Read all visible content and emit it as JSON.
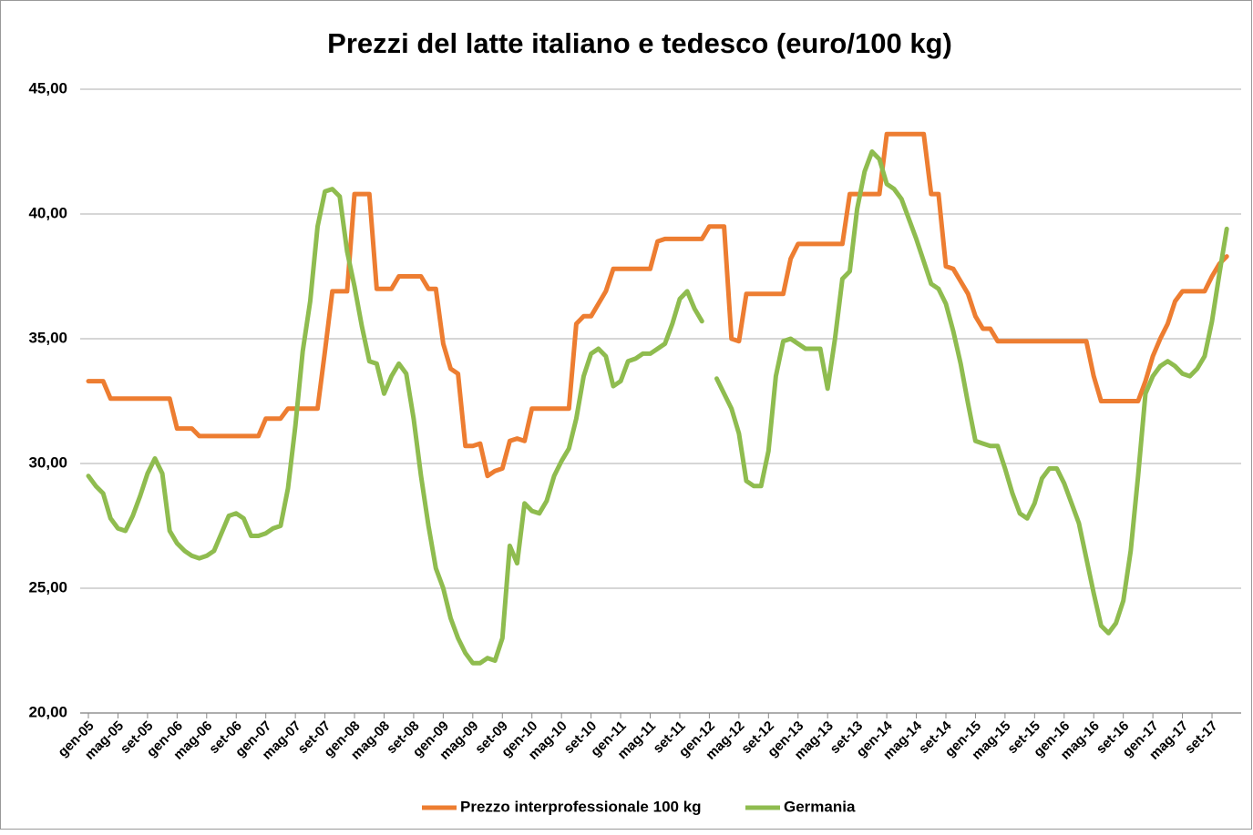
{
  "chart_data": {
    "type": "line",
    "title": "Prezzi del latte italiano e tedesco (euro/100 kg)",
    "categories": [
      "gen-05",
      null,
      null,
      null,
      "mag-05",
      null,
      null,
      null,
      "set-05",
      null,
      null,
      null,
      "gen-06",
      null,
      null,
      null,
      "mag-06",
      null,
      null,
      null,
      "set-06",
      null,
      null,
      null,
      "gen-07",
      null,
      null,
      null,
      "mag-07",
      null,
      null,
      null,
      "set-07",
      null,
      null,
      null,
      "gen-08",
      null,
      null,
      null,
      "mag-08",
      null,
      null,
      null,
      "set-08",
      null,
      null,
      null,
      "gen-09",
      null,
      null,
      null,
      "mag-09",
      null,
      null,
      null,
      "set-09",
      null,
      null,
      null,
      "gen-10",
      null,
      null,
      null,
      "mag-10",
      null,
      null,
      null,
      "set-10",
      null,
      null,
      null,
      "gen-11",
      null,
      null,
      null,
      "mag-11",
      null,
      null,
      null,
      "set-11",
      null,
      null,
      null,
      "gen-12",
      null,
      null,
      null,
      "mag-12",
      null,
      null,
      null,
      "set-12",
      null,
      null,
      null,
      "gen-13",
      null,
      null,
      null,
      "mag-13",
      null,
      null,
      null,
      "set-13",
      null,
      null,
      null,
      "gen-14",
      null,
      null,
      null,
      "mag-14",
      null,
      null,
      null,
      "set-14",
      null,
      null,
      null,
      "gen-15",
      null,
      null,
      null,
      "mag-15",
      null,
      null,
      null,
      "set-15",
      null,
      null,
      null,
      "gen-16",
      null,
      null,
      null,
      "mag-16",
      null,
      null,
      null,
      "set-16",
      null,
      null,
      null,
      "gen-17",
      null,
      null,
      null,
      "mag-17",
      null,
      null,
      null,
      "set-17",
      null,
      null
    ],
    "series": [
      {
        "name": "Prezzo interprofessionale 100 kg",
        "color": "#ed7d31",
        "values": [
          33.3,
          33.3,
          33.3,
          32.6,
          32.6,
          32.6,
          32.6,
          32.6,
          32.6,
          32.6,
          32.6,
          32.6,
          31.4,
          31.4,
          31.4,
          31.1,
          31.1,
          31.1,
          31.1,
          31.1,
          31.1,
          31.1,
          31.1,
          31.1,
          31.8,
          31.8,
          31.8,
          32.2,
          32.2,
          32.2,
          32.2,
          32.2,
          34.5,
          36.9,
          36.9,
          36.9,
          40.8,
          40.8,
          40.8,
          37.0,
          37.0,
          37.0,
          37.5,
          37.5,
          37.5,
          37.5,
          37.0,
          37.0,
          34.8,
          33.8,
          33.6,
          30.7,
          30.7,
          30.8,
          29.5,
          29.7,
          29.8,
          30.9,
          31.0,
          30.9,
          32.2,
          32.2,
          32.2,
          32.2,
          32.2,
          32.2,
          35.6,
          35.9,
          35.9,
          36.4,
          36.9,
          37.8,
          37.8,
          37.8,
          37.8,
          37.8,
          37.8,
          38.9,
          39.0,
          39.0,
          39.0,
          39.0,
          39.0,
          39.0,
          39.5,
          39.5,
          39.5,
          35.0,
          34.9,
          36.8,
          36.8,
          36.8,
          36.8,
          36.8,
          36.8,
          38.2,
          38.8,
          38.8,
          38.8,
          38.8,
          38.8,
          38.8,
          38.8,
          40.8,
          40.8,
          40.8,
          40.8,
          40.8,
          43.2,
          43.2,
          43.2,
          43.2,
          43.2,
          43.2,
          40.8,
          40.8,
          37.9,
          37.8,
          37.3,
          36.8,
          35.9,
          35.4,
          35.4,
          34.9,
          34.9,
          34.9,
          34.9,
          34.9,
          34.9,
          34.9,
          34.9,
          34.9,
          34.9,
          34.9,
          34.9,
          34.9,
          33.5,
          32.5,
          32.5,
          32.5,
          32.5,
          32.5,
          32.5,
          33.3,
          34.3,
          35.0,
          35.6,
          36.5,
          36.9,
          36.9,
          36.9,
          36.9,
          37.5,
          38.0,
          38.3
        ]
      },
      {
        "name": "Germania",
        "color": "#8fbc4f",
        "values": [
          29.5,
          29.1,
          28.8,
          27.8,
          27.4,
          27.3,
          27.9,
          28.7,
          29.6,
          30.2,
          29.6,
          27.3,
          26.8,
          26.5,
          26.3,
          26.2,
          26.3,
          26.5,
          27.2,
          27.9,
          28.0,
          27.8,
          27.1,
          27.1,
          27.2,
          27.4,
          27.5,
          29.0,
          31.5,
          34.5,
          36.5,
          39.5,
          40.9,
          41.0,
          40.7,
          38.5,
          37.1,
          35.5,
          34.1,
          34.0,
          32.8,
          33.5,
          34.0,
          33.6,
          31.8,
          29.5,
          27.5,
          25.8,
          25.0,
          23.8,
          23.0,
          22.4,
          22.0,
          22.0,
          22.2,
          22.1,
          23.0,
          26.7,
          26.0,
          28.4,
          28.1,
          28.0,
          28.5,
          29.5,
          30.1,
          30.6,
          31.8,
          33.5,
          34.4,
          34.6,
          34.3,
          33.1,
          33.3,
          34.1,
          34.2,
          34.4,
          34.4,
          34.6,
          34.8,
          35.6,
          36.6,
          36.9,
          36.2,
          35.7,
          null,
          33.4,
          32.8,
          32.2,
          31.2,
          29.3,
          29.1,
          29.1,
          30.5,
          33.5,
          34.9,
          35.0,
          34.8,
          34.6,
          34.6,
          34.6,
          33.0,
          35.0,
          37.4,
          37.7,
          40.2,
          41.7,
          42.5,
          42.2,
          41.2,
          41.0,
          40.6,
          39.8,
          39.0,
          38.1,
          37.2,
          37.0,
          36.4,
          35.3,
          34.0,
          32.4,
          30.9,
          30.8,
          30.7,
          30.7,
          29.8,
          28.8,
          28.0,
          27.8,
          28.4,
          29.4,
          29.8,
          29.8,
          29.2,
          28.4,
          27.6,
          26.2,
          24.8,
          23.5,
          23.2,
          23.6,
          24.5,
          26.5,
          29.5,
          32.8,
          33.5,
          33.9,
          34.1,
          33.9,
          33.6,
          33.5,
          33.8,
          34.3,
          35.7,
          37.6,
          39.4
        ]
      }
    ],
    "ylim": [
      20,
      45
    ],
    "yticks": [
      {
        "value": 20,
        "label": "20,00"
      },
      {
        "value": 25,
        "label": "25,00"
      },
      {
        "value": 30,
        "label": "30,00"
      },
      {
        "value": 35,
        "label": "35,00"
      },
      {
        "value": 40,
        "label": "40,00"
      },
      {
        "value": 45,
        "label": "45,00"
      }
    ],
    "grid": true,
    "legend": "bottom"
  }
}
